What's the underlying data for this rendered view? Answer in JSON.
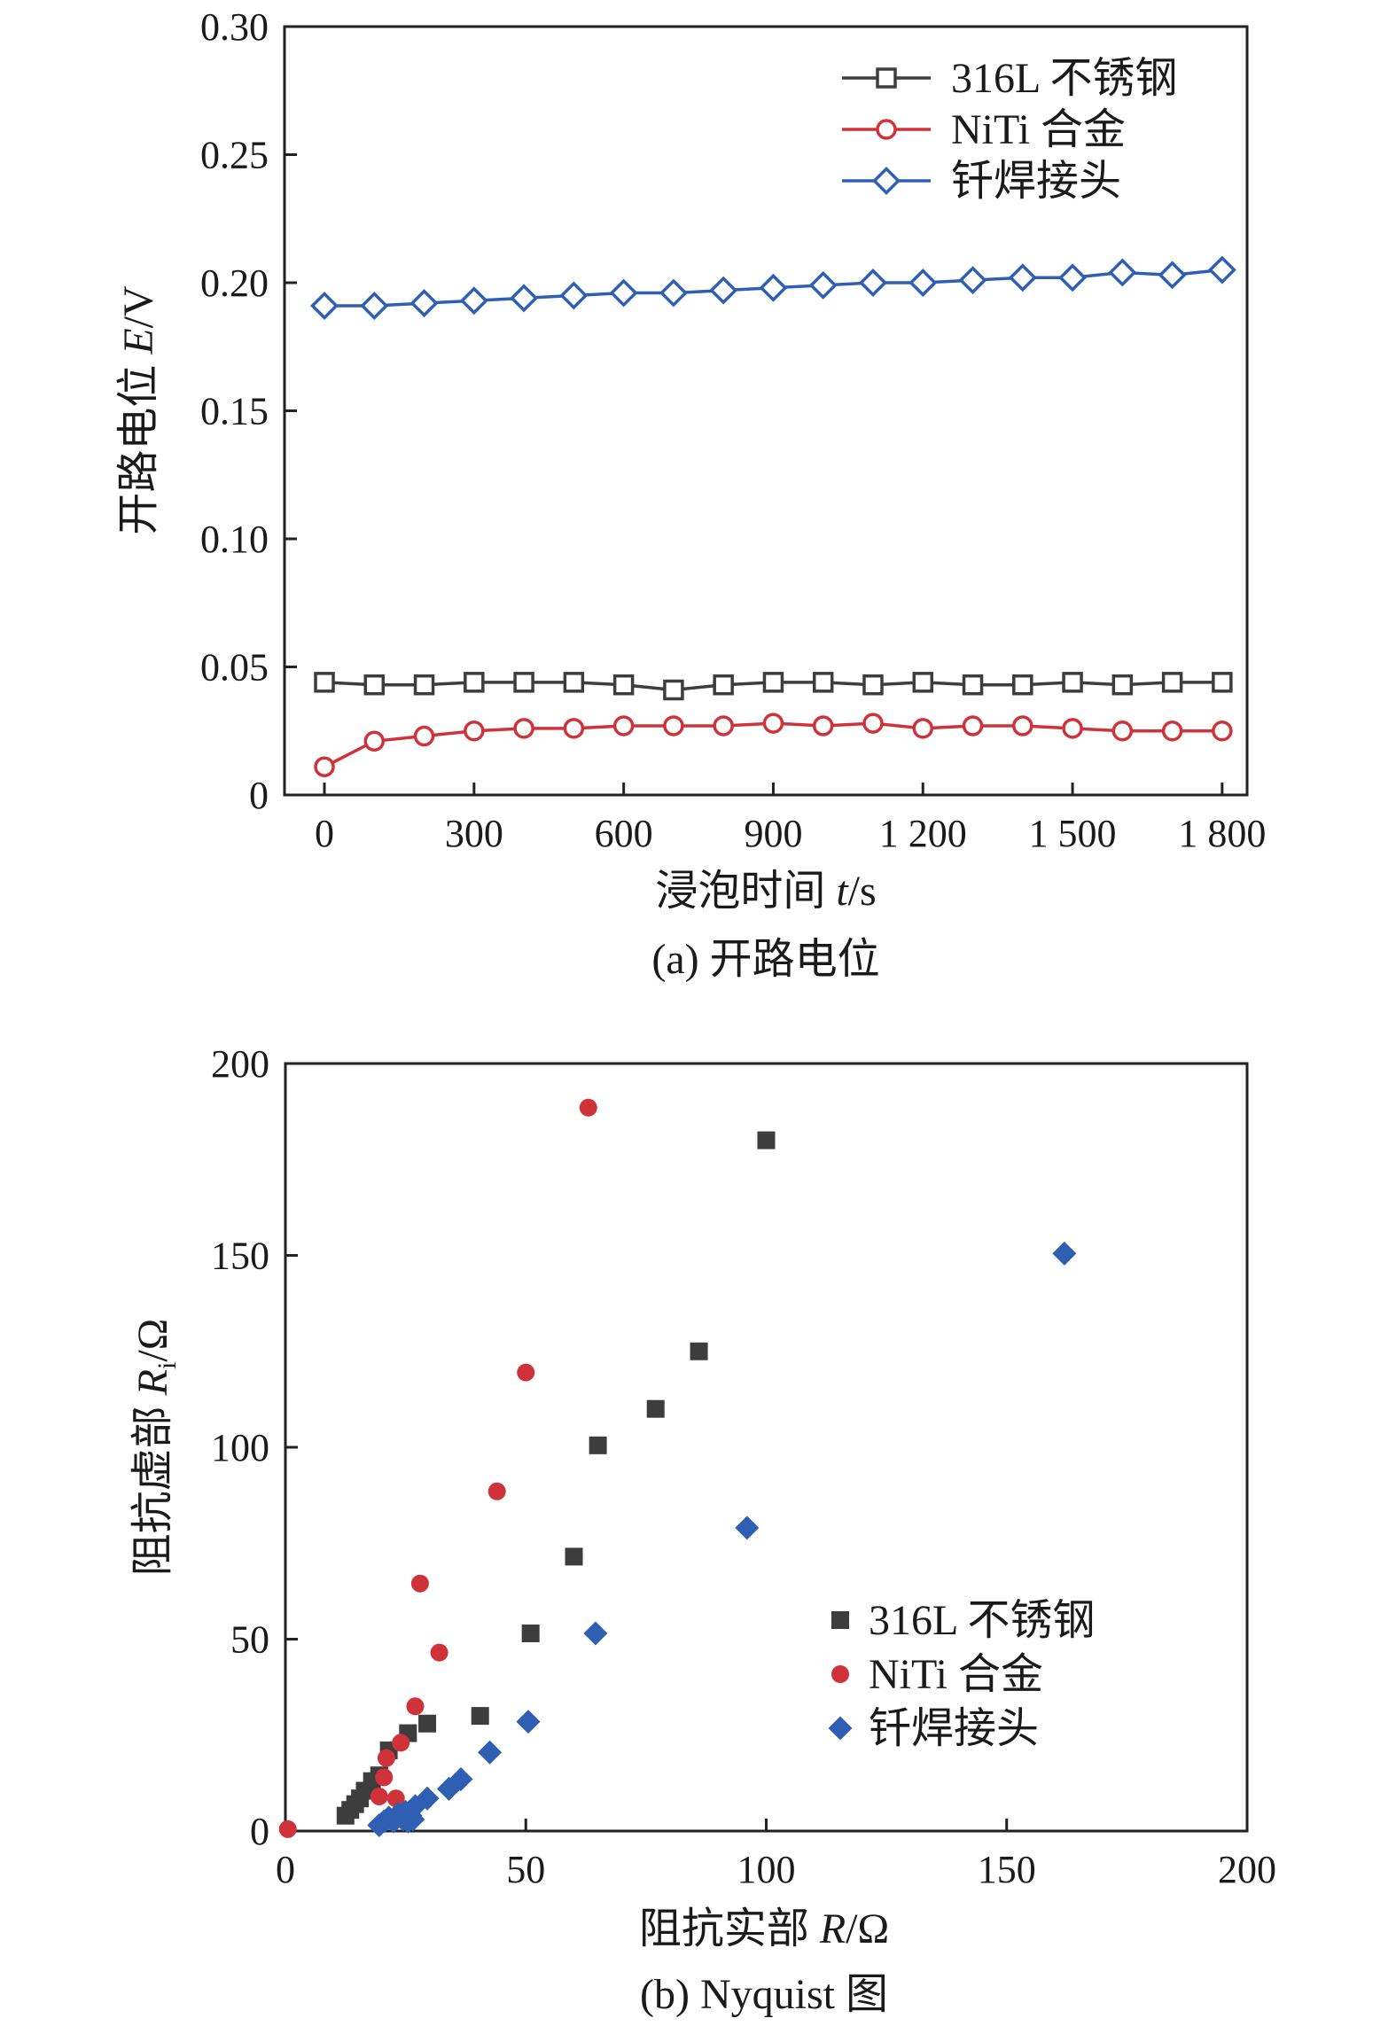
{
  "chart_data": [
    {
      "type": "line",
      "caption": "(a) 开路电位",
      "xlabel": "浸泡时间",
      "xlabel_var": "t",
      "xlabel_unit": "/s",
      "ylabel": "开路电位",
      "ylabel_var": "E",
      "ylabel_unit": "/V",
      "xlim": [
        -80,
        1850
      ],
      "ylim": [
        0,
        0.3
      ],
      "xticks": [
        0,
        300,
        600,
        900,
        1200,
        1500,
        1800
      ],
      "xtick_labels": [
        "0",
        "300",
        "600",
        "900",
        "1 200",
        "1 500",
        "1 800"
      ],
      "yticks": [
        0,
        0.05,
        0.1,
        0.15,
        0.2,
        0.25,
        0.3
      ],
      "ytick_labels": [
        "0",
        "0.05",
        "0.10",
        "0.15",
        "0.20",
        "0.25",
        "0.30"
      ],
      "legend_position": "top-right",
      "series": [
        {
          "name": "316L 不锈钢",
          "color": "#3d3d3d",
          "marker": "square",
          "x": [
            0,
            100,
            200,
            300,
            400,
            500,
            600,
            700,
            800,
            900,
            1000,
            1100,
            1200,
            1300,
            1400,
            1500,
            1600,
            1700,
            1800
          ],
          "values": [
            0.044,
            0.043,
            0.043,
            0.044,
            0.044,
            0.044,
            0.043,
            0.041,
            0.043,
            0.044,
            0.044,
            0.043,
            0.044,
            0.043,
            0.043,
            0.044,
            0.043,
            0.044,
            0.044
          ]
        },
        {
          "name": "NiTi 合金",
          "color": "#d0323a",
          "marker": "circle",
          "x": [
            0,
            100,
            200,
            300,
            400,
            500,
            600,
            700,
            800,
            900,
            1000,
            1100,
            1200,
            1300,
            1400,
            1500,
            1600,
            1700,
            1800
          ],
          "values": [
            0.011,
            0.021,
            0.023,
            0.025,
            0.026,
            0.026,
            0.027,
            0.027,
            0.027,
            0.028,
            0.027,
            0.028,
            0.026,
            0.027,
            0.027,
            0.026,
            0.025,
            0.025,
            0.025
          ]
        },
        {
          "name": "钎焊接头",
          "color": "#2f5fb3",
          "marker": "diamond",
          "x": [
            0,
            100,
            200,
            300,
            400,
            500,
            600,
            700,
            800,
            900,
            1000,
            1100,
            1200,
            1300,
            1400,
            1500,
            1600,
            1700,
            1800
          ],
          "values": [
            0.191,
            0.191,
            0.192,
            0.193,
            0.194,
            0.195,
            0.196,
            0.196,
            0.197,
            0.198,
            0.199,
            0.2,
            0.2,
            0.201,
            0.202,
            0.202,
            0.204,
            0.203,
            0.205
          ]
        }
      ]
    },
    {
      "type": "scatter",
      "caption": "(b) Nyquist 图",
      "xlabel": "阻抗实部",
      "xlabel_var": "R",
      "xlabel_unit": "/Ω",
      "ylabel": "阻抗虚部",
      "ylabel_var": "R",
      "ylabel_sub": "i",
      "ylabel_unit": "/Ω",
      "xlim": [
        0,
        200
      ],
      "ylim": [
        0,
        200
      ],
      "xticks": [
        0,
        50,
        100,
        150,
        200
      ],
      "xtick_labels": [
        "0",
        "50",
        "100",
        "150",
        "200"
      ],
      "yticks": [
        0,
        50,
        100,
        150,
        200
      ],
      "ytick_labels": [
        "0",
        "50",
        "100",
        "150",
        "200"
      ],
      "legend_position": "lower-right",
      "series": [
        {
          "name": "316L 不锈钢",
          "color": "#3d3d3d",
          "marker": "square",
          "x": [
            12.5,
            13.5,
            14.5,
            15.5,
            16.5,
            18,
            19.5,
            21.5,
            25.5,
            29.5,
            40.5,
            51,
            60,
            65,
            77,
            86,
            100
          ],
          "values": [
            4,
            5.5,
            7,
            8.5,
            10.5,
            13,
            14.5,
            21,
            25.5,
            28,
            30,
            51.5,
            71.5,
            100.5,
            110,
            125,
            180
          ]
        },
        {
          "name": "NiTi 合金",
          "color": "#d0323a",
          "marker": "circle",
          "x": [
            0.5,
            19.5,
            20.5,
            21,
            23,
            24,
            27,
            28,
            32,
            44,
            50,
            63
          ],
          "values": [
            0.5,
            9,
            14,
            19,
            8.5,
            23,
            32.5,
            64.5,
            46.5,
            88.5,
            119.5,
            188.5
          ]
        },
        {
          "name": "钎焊接头",
          "color": "#2f5fb3",
          "marker": "diamond",
          "x": [
            19.5,
            20.5,
            21.5,
            22.5,
            23.5,
            24.5,
            25,
            25.5,
            26,
            26.5,
            27,
            29.5,
            34,
            36.5,
            42.5,
            50.5,
            64.5,
            96,
            162
          ],
          "values": [
            1.5,
            2.5,
            3.5,
            2.5,
            4.5,
            3,
            5,
            2.5,
            4,
            3,
            6.5,
            8.5,
            11,
            13.5,
            20.5,
            28.5,
            51.5,
            79,
            150.5
          ]
        }
      ]
    }
  ]
}
